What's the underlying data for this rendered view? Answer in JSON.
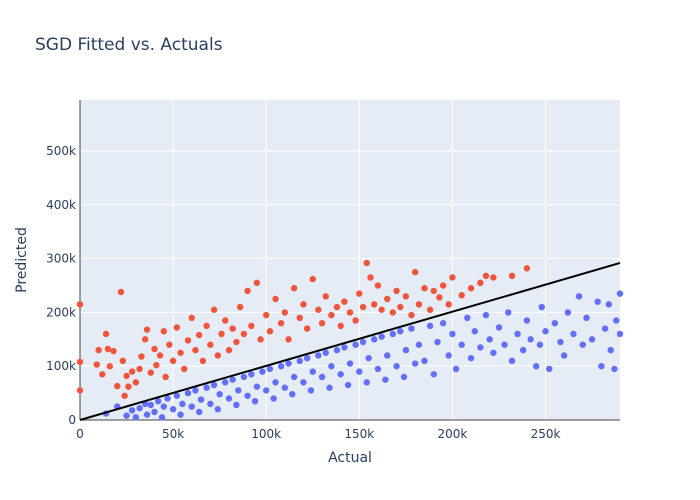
{
  "chart_data": {
    "type": "scatter",
    "title": "SGD Fitted vs. Actuals",
    "xlabel": "Actual",
    "ylabel": "Predicted",
    "xlim": [
      0,
      290000
    ],
    "ylim": [
      0,
      595000
    ],
    "x_ticks": [
      {
        "value": 0,
        "label": "0"
      },
      {
        "value": 50000,
        "label": "50k"
      },
      {
        "value": 100000,
        "label": "100k"
      },
      {
        "value": 150000,
        "label": "150k"
      },
      {
        "value": 200000,
        "label": "200k"
      },
      {
        "value": 250000,
        "label": "250k"
      }
    ],
    "y_ticks": [
      {
        "value": 0,
        "label": "0"
      },
      {
        "value": 100000,
        "label": "100k"
      },
      {
        "value": 200000,
        "label": "200k"
      },
      {
        "value": 300000,
        "label": "300k"
      },
      {
        "value": 400000,
        "label": "400k"
      },
      {
        "value": 500000,
        "label": "500k"
      }
    ],
    "grid": true,
    "legend": false,
    "reference_line": {
      "x": [
        0,
        290000
      ],
      "y": [
        0,
        292000
      ],
      "color": "#000000"
    },
    "colors": {
      "over": "#ef553b",
      "under": "#636efa",
      "plot_bg": "#e5ecf6",
      "grid": "#ffffff"
    },
    "series": [
      {
        "color": "#ef553b",
        "points": [
          [
            0,
            215000
          ],
          [
            0,
            108000
          ],
          [
            0,
            55000
          ],
          [
            9000,
            103000
          ],
          [
            10000,
            130000
          ],
          [
            12000,
            85000
          ],
          [
            14000,
            160000
          ],
          [
            15000,
            132000
          ],
          [
            16000,
            100000
          ],
          [
            18000,
            128000
          ],
          [
            20000,
            63000
          ],
          [
            22000,
            238000
          ],
          [
            23000,
            110000
          ],
          [
            24000,
            45000
          ],
          [
            25000,
            82000
          ],
          [
            26000,
            62000
          ],
          [
            28000,
            90000
          ],
          [
            30000,
            70000
          ],
          [
            32000,
            95000
          ],
          [
            33000,
            118000
          ],
          [
            35000,
            150000
          ],
          [
            36000,
            168000
          ],
          [
            38000,
            88000
          ],
          [
            40000,
            132000
          ],
          [
            41000,
            102000
          ],
          [
            43000,
            120000
          ],
          [
            45000,
            165000
          ],
          [
            46000,
            80000
          ],
          [
            48000,
            140000
          ],
          [
            50000,
            110000
          ],
          [
            52000,
            172000
          ],
          [
            54000,
            125000
          ],
          [
            56000,
            95000
          ],
          [
            58000,
            148000
          ],
          [
            60000,
            190000
          ],
          [
            62000,
            130000
          ],
          [
            64000,
            158000
          ],
          [
            66000,
            110000
          ],
          [
            68000,
            175000
          ],
          [
            70000,
            140000
          ],
          [
            72000,
            205000
          ],
          [
            74000,
            120000
          ],
          [
            76000,
            160000
          ],
          [
            78000,
            185000
          ],
          [
            80000,
            130000
          ],
          [
            82000,
            170000
          ],
          [
            84000,
            145000
          ],
          [
            86000,
            210000
          ],
          [
            88000,
            160000
          ],
          [
            90000,
            240000
          ],
          [
            92000,
            175000
          ],
          [
            95000,
            255000
          ],
          [
            97000,
            150000
          ],
          [
            100000,
            195000
          ],
          [
            102000,
            165000
          ],
          [
            105000,
            225000
          ],
          [
            108000,
            180000
          ],
          [
            110000,
            200000
          ],
          [
            112000,
            150000
          ],
          [
            115000,
            245000
          ],
          [
            118000,
            190000
          ],
          [
            120000,
            215000
          ],
          [
            122000,
            170000
          ],
          [
            125000,
            262000
          ],
          [
            128000,
            205000
          ],
          [
            130000,
            180000
          ],
          [
            132000,
            230000
          ],
          [
            135000,
            195000
          ],
          [
            138000,
            210000
          ],
          [
            140000,
            175000
          ],
          [
            142000,
            220000
          ],
          [
            145000,
            200000
          ],
          [
            148000,
            185000
          ],
          [
            150000,
            235000
          ],
          [
            152000,
            210000
          ],
          [
            154000,
            292000
          ],
          [
            156000,
            265000
          ],
          [
            158000,
            215000
          ],
          [
            160000,
            250000
          ],
          [
            162000,
            205000
          ],
          [
            165000,
            225000
          ],
          [
            168000,
            200000
          ],
          [
            170000,
            240000
          ],
          [
            172000,
            210000
          ],
          [
            175000,
            230000
          ],
          [
            178000,
            195000
          ],
          [
            180000,
            275000
          ],
          [
            182000,
            215000
          ],
          [
            185000,
            245000
          ],
          [
            188000,
            205000
          ],
          [
            190000,
            240000
          ],
          [
            193000,
            228000
          ],
          [
            195000,
            250000
          ],
          [
            198000,
            215000
          ],
          [
            200000,
            265000
          ],
          [
            205000,
            232000
          ],
          [
            210000,
            245000
          ],
          [
            215000,
            255000
          ],
          [
            218000,
            268000
          ],
          [
            222000,
            265000
          ],
          [
            232000,
            268000
          ],
          [
            240000,
            282000
          ]
        ]
      },
      {
        "color": "#636efa",
        "points": [
          [
            14000,
            12000
          ],
          [
            20000,
            25000
          ],
          [
            25000,
            8000
          ],
          [
            28000,
            18000
          ],
          [
            30000,
            5000
          ],
          [
            32000,
            22000
          ],
          [
            35000,
            30000
          ],
          [
            36000,
            10000
          ],
          [
            38000,
            28000
          ],
          [
            40000,
            15000
          ],
          [
            42000,
            35000
          ],
          [
            44000,
            5000
          ],
          [
            45000,
            25000
          ],
          [
            47000,
            40000
          ],
          [
            50000,
            20000
          ],
          [
            52000,
            45000
          ],
          [
            54000,
            10000
          ],
          [
            55000,
            30000
          ],
          [
            58000,
            50000
          ],
          [
            60000,
            25000
          ],
          [
            62000,
            55000
          ],
          [
            64000,
            15000
          ],
          [
            65000,
            38000
          ],
          [
            68000,
            60000
          ],
          [
            70000,
            30000
          ],
          [
            72000,
            65000
          ],
          [
            74000,
            20000
          ],
          [
            75000,
            48000
          ],
          [
            78000,
            70000
          ],
          [
            80000,
            40000
          ],
          [
            82000,
            75000
          ],
          [
            84000,
            28000
          ],
          [
            85000,
            55000
          ],
          [
            88000,
            80000
          ],
          [
            90000,
            45000
          ],
          [
            92000,
            85000
          ],
          [
            94000,
            35000
          ],
          [
            95000,
            62000
          ],
          [
            98000,
            90000
          ],
          [
            100000,
            55000
          ],
          [
            102000,
            95000
          ],
          [
            104000,
            40000
          ],
          [
            105000,
            70000
          ],
          [
            108000,
            100000
          ],
          [
            110000,
            60000
          ],
          [
            112000,
            105000
          ],
          [
            114000,
            48000
          ],
          [
            115000,
            80000
          ],
          [
            118000,
            110000
          ],
          [
            120000,
            70000
          ],
          [
            122000,
            115000
          ],
          [
            124000,
            55000
          ],
          [
            125000,
            90000
          ],
          [
            128000,
            120000
          ],
          [
            130000,
            80000
          ],
          [
            132000,
            125000
          ],
          [
            134000,
            60000
          ],
          [
            135000,
            100000
          ],
          [
            138000,
            130000
          ],
          [
            140000,
            85000
          ],
          [
            142000,
            135000
          ],
          [
            144000,
            65000
          ],
          [
            145000,
            105000
          ],
          [
            148000,
            140000
          ],
          [
            150000,
            90000
          ],
          [
            152000,
            145000
          ],
          [
            154000,
            70000
          ],
          [
            155000,
            115000
          ],
          [
            158000,
            150000
          ],
          [
            160000,
            95000
          ],
          [
            162000,
            155000
          ],
          [
            164000,
            75000
          ],
          [
            165000,
            120000
          ],
          [
            168000,
            160000
          ],
          [
            170000,
            100000
          ],
          [
            172000,
            165000
          ],
          [
            174000,
            80000
          ],
          [
            175000,
            130000
          ],
          [
            178000,
            170000
          ],
          [
            180000,
            105000
          ],
          [
            182000,
            140000
          ],
          [
            185000,
            110000
          ],
          [
            188000,
            175000
          ],
          [
            190000,
            85000
          ],
          [
            192000,
            145000
          ],
          [
            195000,
            180000
          ],
          [
            198000,
            120000
          ],
          [
            200000,
            160000
          ],
          [
            202000,
            95000
          ],
          [
            205000,
            140000
          ],
          [
            208000,
            190000
          ],
          [
            210000,
            115000
          ],
          [
            212000,
            165000
          ],
          [
            215000,
            135000
          ],
          [
            218000,
            195000
          ],
          [
            220000,
            150000
          ],
          [
            222000,
            125000
          ],
          [
            225000,
            172000
          ],
          [
            228000,
            140000
          ],
          [
            230000,
            200000
          ],
          [
            232000,
            110000
          ],
          [
            235000,
            160000
          ],
          [
            238000,
            130000
          ],
          [
            240000,
            185000
          ],
          [
            242000,
            150000
          ],
          [
            245000,
            100000
          ],
          [
            247000,
            140000
          ],
          [
            248000,
            210000
          ],
          [
            250000,
            165000
          ],
          [
            252000,
            95000
          ],
          [
            255000,
            180000
          ],
          [
            258000,
            145000
          ],
          [
            260000,
            120000
          ],
          [
            262000,
            200000
          ],
          [
            265000,
            160000
          ],
          [
            268000,
            230000
          ],
          [
            270000,
            140000
          ],
          [
            272000,
            190000
          ],
          [
            275000,
            150000
          ],
          [
            278000,
            220000
          ],
          [
            280000,
            100000
          ],
          [
            282000,
            170000
          ],
          [
            284000,
            215000
          ],
          [
            285000,
            130000
          ],
          [
            287000,
            95000
          ],
          [
            288000,
            185000
          ],
          [
            290000,
            160000
          ],
          [
            290000,
            235000
          ]
        ]
      }
    ]
  }
}
